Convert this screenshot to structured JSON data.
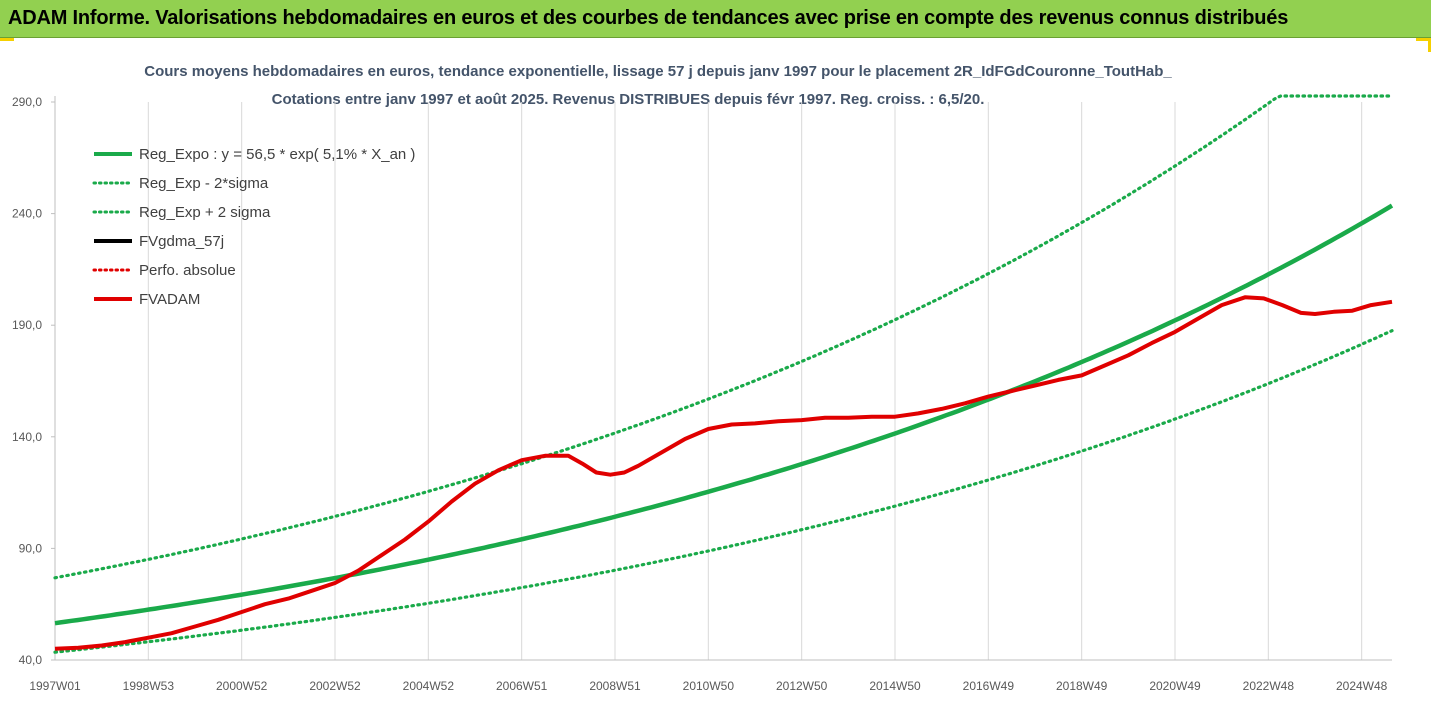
{
  "banner": {
    "title": "ADAM Informe. Valorisations hebdomadaires en euros et des courbes de tendances avec prise en compte des revenus connus distribués"
  },
  "colors": {
    "banner": "#92d050",
    "trend": "#1aaa4a",
    "fvadam": "#e00000",
    "fvgdma": "#000000"
  },
  "chart_data": {
    "type": "line",
    "title": "Cours moyens hebdomadaires en euros, tendance exponentielle, lissage 57 j depuis janv 1997 pour le placement 2R_IdFGdCouronne_ToutHab_",
    "subtitle": "Cotations entre janv 1997 et août 2025. Revenus DISTRIBUES depuis févr 1997. Reg. croiss. : 6,5/20.",
    "xlabel": "",
    "ylabel": "",
    "ylim": [
      40,
      290
    ],
    "xlim": [
      1997.0,
      2025.65
    ],
    "yticks": [
      "290,0",
      "240,0",
      "190,0",
      "140,0",
      "90,0",
      "40,0"
    ],
    "ytick_values": [
      290,
      240,
      190,
      140,
      90,
      40
    ],
    "xticks": [
      "1997W01",
      "1998W53",
      "2000W52",
      "2002W52",
      "2004W52",
      "2006W51",
      "2008W51",
      "2010W50",
      "2012W50",
      "2014W50",
      "2016W49",
      "2018W49",
      "2020W49",
      "2022W48",
      "2024W48"
    ],
    "xtick_values": [
      1997.0,
      1999.0,
      2001.0,
      2003.0,
      2005.0,
      2007.0,
      2009.0,
      2011.0,
      2013.0,
      2015.0,
      2017.0,
      2019.0,
      2021.0,
      2023.0,
      2025.0
    ],
    "grid": "vertical",
    "legend_position": "top-left",
    "legend": [
      {
        "label": "Reg_Expo : y = 56,5 * exp( 5,1% *  X_an )",
        "color": "#1aaa4a",
        "style": "solid"
      },
      {
        "label": "Reg_Exp - 2*sigma",
        "color": "#1aaa4a",
        "style": "dotted"
      },
      {
        "label": "Reg_Exp + 2 sigma",
        "color": "#1aaa4a",
        "style": "dotted"
      },
      {
        "label": "FVgdma_57j",
        "color": "#000000",
        "style": "solid"
      },
      {
        "label": "Perfo. absolue",
        "color": "#e00000",
        "style": "dotted"
      },
      {
        "label": "FVADAM",
        "color": "#e00000",
        "style": "solid"
      }
    ],
    "trend_params": {
      "a": 56.5,
      "rate": 0.051,
      "start_year": 1997.0,
      "lower_factor": 0.77,
      "upper_factor": 1.36,
      "upper_cap": 300
    },
    "series": [
      {
        "name": "FVADAM",
        "x": [
          1997.0,
          1997.5,
          1998.0,
          1998.5,
          1999.0,
          1999.5,
          2000.0,
          2000.5,
          2001.0,
          2001.5,
          2002.0,
          2002.5,
          2003.0,
          2003.5,
          2004.0,
          2004.5,
          2005.0,
          2005.5,
          2006.0,
          2006.5,
          2007.0,
          2007.5,
          2008.0,
          2008.3,
          2008.6,
          2008.9,
          2009.2,
          2009.5,
          2010.0,
          2010.5,
          2011.0,
          2011.5,
          2012.0,
          2012.5,
          2013.0,
          2013.5,
          2014.0,
          2014.5,
          2015.0,
          2015.5,
          2016.0,
          2016.5,
          2017.0,
          2017.5,
          2018.0,
          2018.5,
          2019.0,
          2019.5,
          2020.0,
          2020.5,
          2021.0,
          2021.5,
          2022.0,
          2022.5,
          2022.9,
          2023.3,
          2023.7,
          2024.0,
          2024.4,
          2024.8,
          2025.2,
          2025.65
        ],
        "values": [
          45,
          45.5,
          46.5,
          48,
          50,
          52,
          55,
          58,
          61.5,
          65,
          67.5,
          71,
          74.5,
          80,
          87,
          94,
          102,
          111,
          119,
          125,
          129.5,
          131.5,
          131.5,
          128,
          124,
          123,
          124,
          127,
          133,
          139,
          143.5,
          145.5,
          146,
          147,
          147.5,
          148.5,
          148.5,
          149,
          149,
          150.5,
          152.5,
          155,
          158,
          160.5,
          163,
          165.5,
          167.5,
          172,
          176.5,
          182,
          187,
          193,
          199,
          202.5,
          202,
          199,
          195.5,
          195,
          196,
          196.5,
          199,
          200.5
        ]
      }
    ]
  }
}
